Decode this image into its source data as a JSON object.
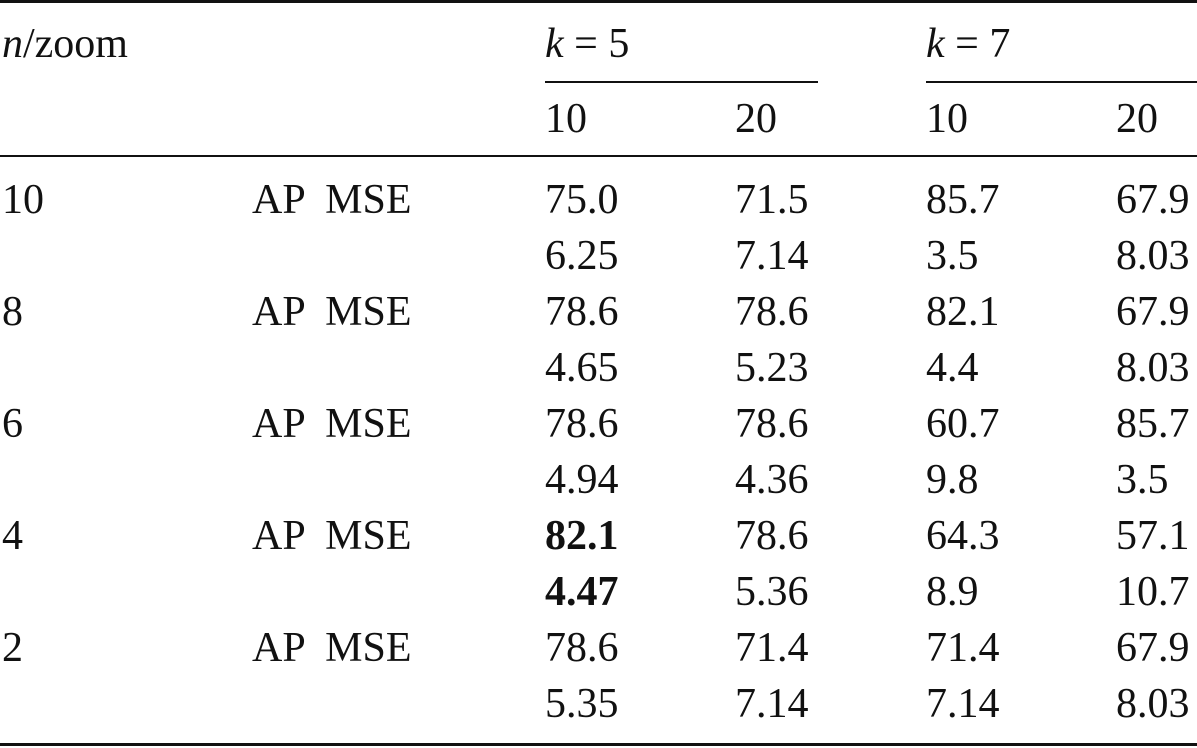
{
  "header": {
    "n_label_italic": "n",
    "n_label_rest": "/zoom",
    "k5_italic": "k",
    "k5_rest": " = 5",
    "k7_italic": "k",
    "k7_rest": " = 7",
    "zooms": [
      "10",
      "20",
      "10",
      "20"
    ]
  },
  "rows": [
    {
      "n": "10",
      "metric": "AP  MSE",
      "ap": [
        "75.0",
        "71.5",
        "85.7",
        "67.9"
      ],
      "mse": [
        "6.25",
        "7.14",
        "3.5",
        "8.03"
      ]
    },
    {
      "n": "8",
      "metric": "AP  MSE",
      "ap": [
        "78.6",
        "78.6",
        "82.1",
        "67.9"
      ],
      "mse": [
        "4.65",
        "5.23",
        "4.4",
        "8.03"
      ]
    },
    {
      "n": "6",
      "metric": "AP  MSE",
      "ap": [
        "78.6",
        "78.6",
        "60.7",
        "85.7"
      ],
      "mse": [
        "4.94",
        "4.36",
        "9.8",
        "3.5"
      ]
    },
    {
      "n": "4",
      "metric": "AP  MSE",
      "ap": [
        "82.1",
        "78.6",
        "64.3",
        "57.1"
      ],
      "mse": [
        "4.47",
        "5.36",
        "8.9",
        "10.7"
      ]
    },
    {
      "n": "2",
      "metric": "AP  MSE",
      "ap": [
        "78.6",
        "71.4",
        "71.4",
        "67.9"
      ],
      "mse": [
        "5.35",
        "7.14",
        "7.14",
        "8.03"
      ]
    }
  ]
}
